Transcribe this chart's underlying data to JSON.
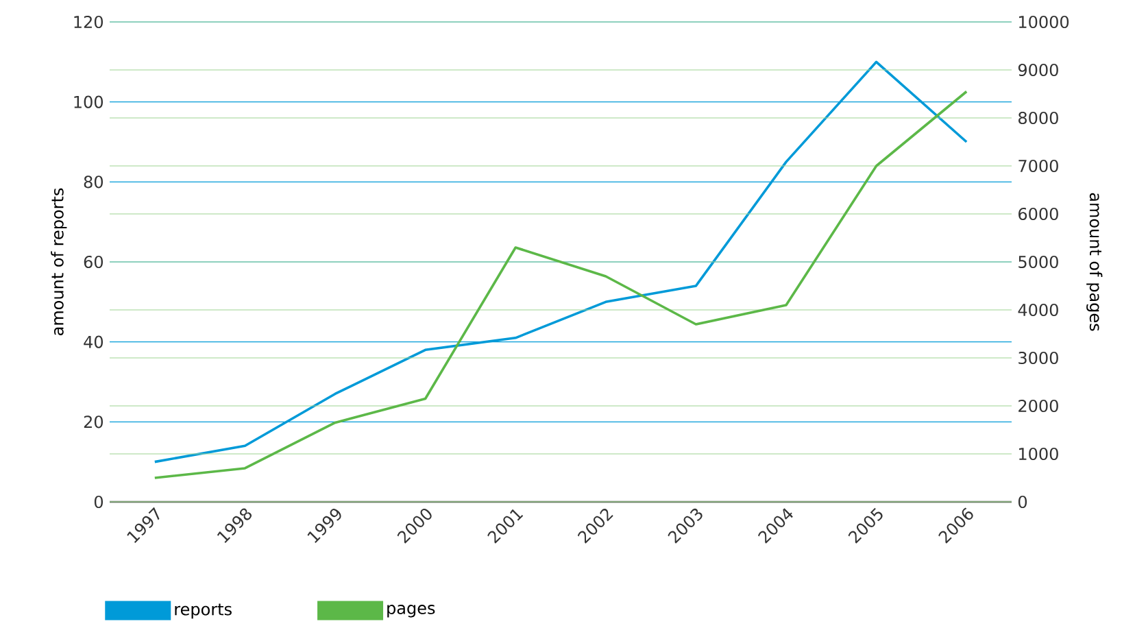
{
  "chart_data": {
    "type": "line",
    "ylabel": "amount of reports",
    "y2label": "amount of pages",
    "categories": [
      "1997",
      "1998",
      "1999",
      "2000",
      "2001",
      "2002",
      "2003",
      "2004",
      "2005",
      "2006"
    ],
    "series": [
      {
        "name": "reports",
        "color": "#009ad8",
        "values": [
          10,
          14,
          27,
          38,
          41,
          50,
          54,
          85,
          110,
          90
        ]
      },
      {
        "name": "pages",
        "color": "#5cb848",
        "axis": "y2",
        "values": [
          500,
          700,
          1650,
          2150,
          5300,
          4700,
          3700,
          4100,
          7000,
          8550
        ]
      }
    ],
    "ylim": [
      0,
      120
    ],
    "yticks": [
      0,
      20,
      40,
      60,
      80,
      100,
      120
    ],
    "y2lim": [
      0,
      10000
    ],
    "y2ticks": [
      0,
      1000,
      2000,
      3000,
      4000,
      5000,
      6000,
      7000,
      8000,
      9000,
      10000
    ],
    "grid": "y",
    "legend": "bottom",
    "marker": "none",
    "line_style": "solid"
  }
}
